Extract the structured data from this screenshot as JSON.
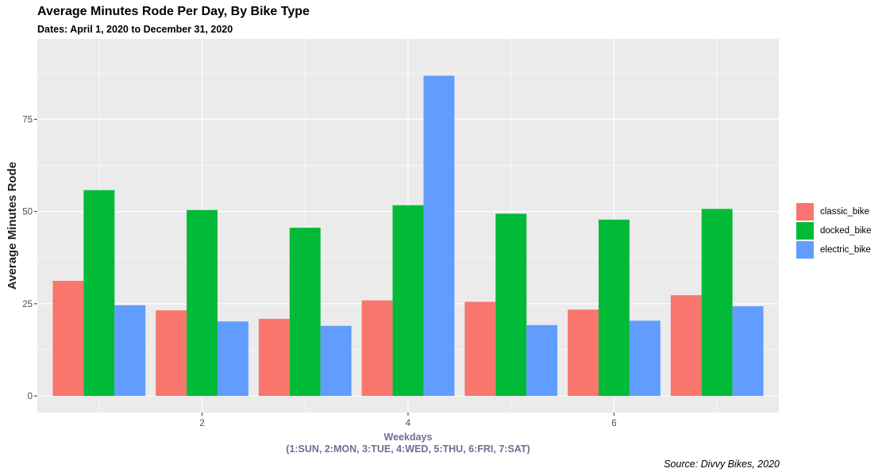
{
  "title": "Average Minutes Rode Per Day, By Bike Type",
  "subtitle": "Dates: April 1, 2020 to December 31, 2020",
  "caption": "Source: Divvy Bikes, 2020",
  "chart_data": {
    "type": "bar",
    "grouping": "dodge",
    "title": "Average Minutes Rode Per Day, By Bike Type",
    "subtitle": "Dates: April 1, 2020 to December 31, 2020",
    "xlabel": "Weekdays",
    "xlabel_line2": "(1:SUN, 2:MON, 3:TUE, 4:WED, 5:THU, 6:FRI, 7:SAT)",
    "ylabel": "Average Minutes Rode",
    "categories": [
      1,
      2,
      3,
      4,
      5,
      6,
      7
    ],
    "xticks": [
      2,
      4,
      6
    ],
    "yticks": [
      0,
      25,
      50,
      75
    ],
    "ylim": [
      0,
      90
    ],
    "xlim": [
      0.4,
      7.6
    ],
    "grid": true,
    "legend_position": "right",
    "series": [
      {
        "name": "classic_bike",
        "color": "#F8766D",
        "values": [
          31.2,
          23.2,
          20.9,
          25.9,
          25.5,
          23.4,
          27.3
        ]
      },
      {
        "name": "docked_bike",
        "color": "#00BA38",
        "values": [
          55.8,
          50.4,
          45.6,
          51.7,
          49.4,
          47.8,
          50.7
        ]
      },
      {
        "name": "electric_bike",
        "color": "#619CFF",
        "values": [
          24.6,
          20.2,
          19.0,
          86.8,
          19.2,
          20.4,
          24.3
        ]
      }
    ],
    "caption": "Source: Divvy Bikes, 2020"
  }
}
